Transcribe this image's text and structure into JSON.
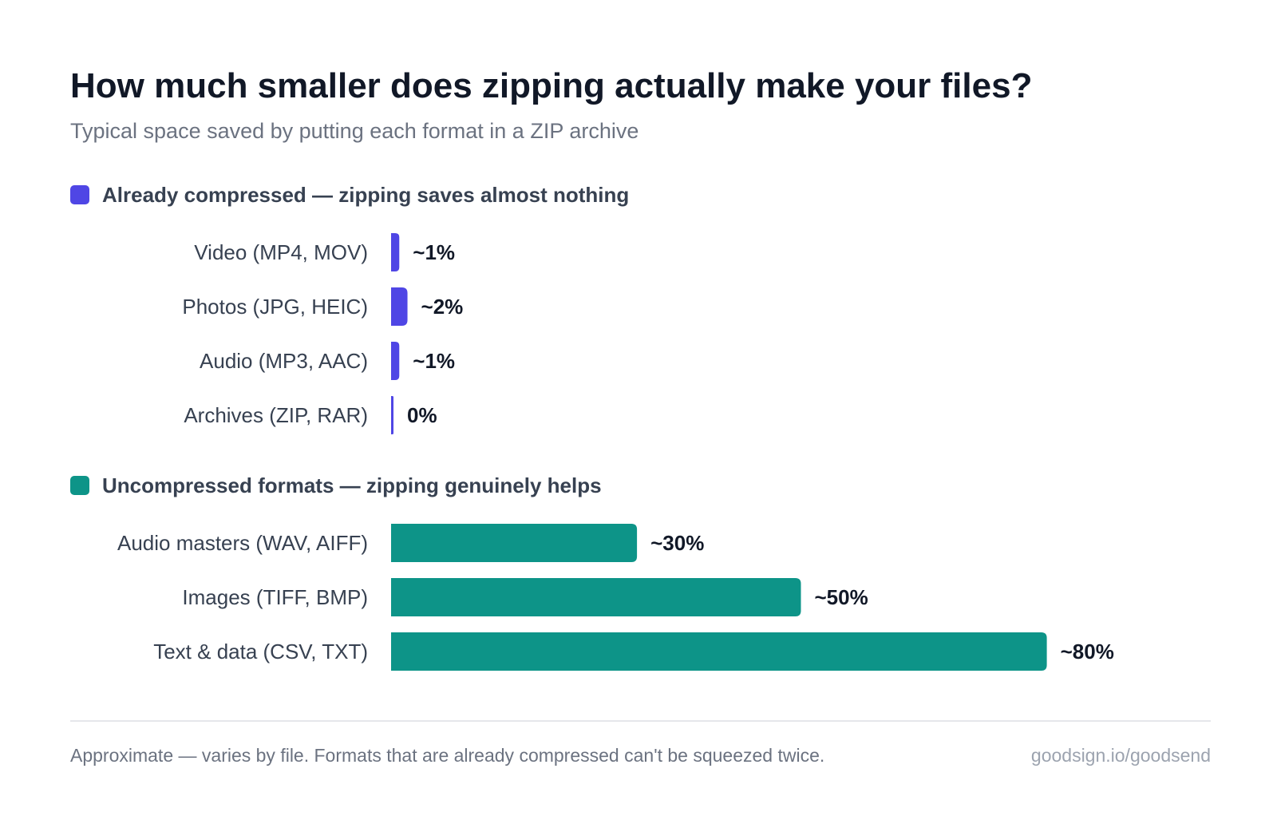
{
  "chart_data": {
    "type": "bar",
    "orientation": "horizontal",
    "title": "How much smaller does zipping actually make your files?",
    "subtitle": "Typical space saved by putting each format in a ZIP archive",
    "xlim": [
      0,
      100
    ],
    "grid": false,
    "groups": [
      {
        "name": "Already compressed — zipping saves almost nothing",
        "color": "#4f46e5",
        "categories": [
          "Video (MP4, MOV)",
          "Photos (JPG, HEIC)",
          "Audio (MP3, AAC)",
          "Archives (ZIP, RAR)"
        ],
        "values": [
          1,
          2,
          1,
          0
        ],
        "value_labels": [
          "~1%",
          "~2%",
          "~1%",
          "0%"
        ]
      },
      {
        "name": "Uncompressed formats — zipping genuinely helps",
        "color": "#0d9488",
        "categories": [
          "Audio masters (WAV, AIFF)",
          "Images (TIFF, BMP)",
          "Text & data (CSV, TXT)"
        ],
        "values": [
          30,
          50,
          80
        ],
        "value_labels": [
          "~30%",
          "~50%",
          "~80%"
        ]
      }
    ],
    "footnote": "Approximate — varies by file. Formats that are already compressed can't be squeezed twice.",
    "source": "goodsign.io/goodsend"
  }
}
